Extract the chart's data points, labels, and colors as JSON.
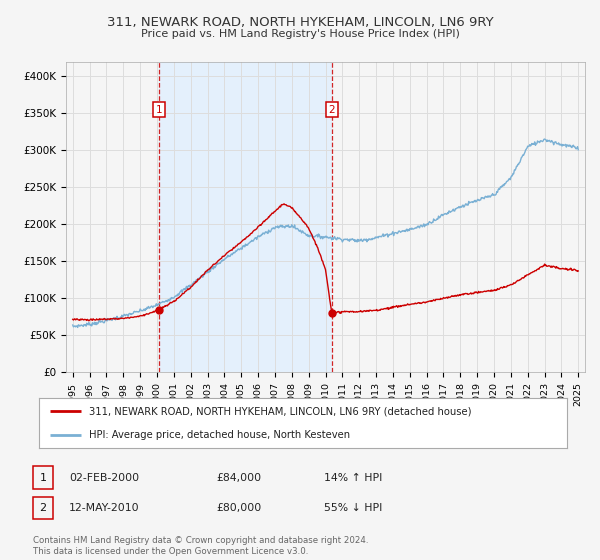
{
  "title": "311, NEWARK ROAD, NORTH HYKEHAM, LINCOLN, LN6 9RY",
  "subtitle": "Price paid vs. HM Land Registry's House Price Index (HPI)",
  "legend_line1": "311, NEWARK ROAD, NORTH HYKEHAM, LINCOLN, LN6 9RY (detached house)",
  "legend_line2": "HPI: Average price, detached house, North Kesteven",
  "annotation1_date": "02-FEB-2000",
  "annotation1_price": "£84,000",
  "annotation1_hpi": "14% ↑ HPI",
  "annotation1_year": 2000.1,
  "annotation2_date": "12-MAY-2010",
  "annotation2_price": "£80,000",
  "annotation2_hpi": "55% ↓ HPI",
  "annotation2_year": 2010.37,
  "red_color": "#cc0000",
  "blue_color": "#7ab0d4",
  "shade_color": "#ddeeff",
  "background_color": "#f5f5f5",
  "grid_color": "#dddddd",
  "footer": "Contains HM Land Registry data © Crown copyright and database right 2024.\nThis data is licensed under the Open Government Licence v3.0.",
  "ylim": [
    0,
    420000
  ],
  "yticks": [
    0,
    50000,
    100000,
    150000,
    200000,
    250000,
    300000,
    350000,
    400000
  ],
  "ytick_labels": [
    "£0",
    "£50K",
    "£100K",
    "£150K",
    "£200K",
    "£250K",
    "£300K",
    "£350K",
    "£400K"
  ]
}
